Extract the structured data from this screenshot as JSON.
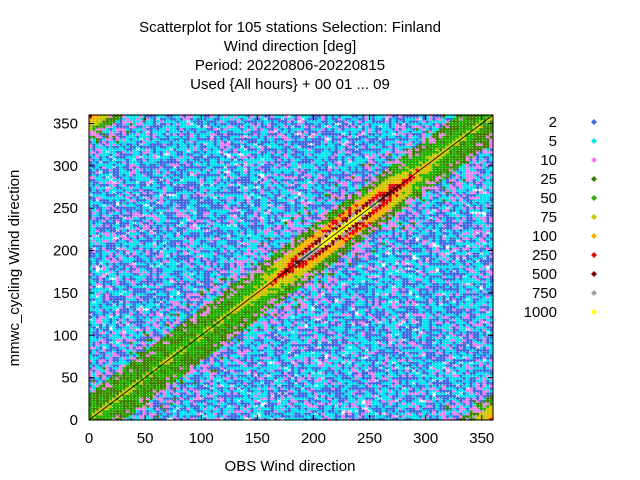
{
  "chart_data": {
    "type": "scatter",
    "title_lines": [
      "Scatterplot for  105 stations Selection: Finland",
      "Wind direction [deg]",
      "Period: 20220806-20220815",
      "Used {All hours} + 00 01 ... 09"
    ],
    "xlabel": "OBS Wind direction",
    "ylabel": "mmwc_cycling Wind direction",
    "xlim": [
      0,
      360
    ],
    "ylim": [
      0,
      360
    ],
    "xticks": [
      0,
      50,
      100,
      150,
      200,
      250,
      300,
      350
    ],
    "yticks": [
      0,
      50,
      100,
      150,
      200,
      250,
      300,
      350
    ],
    "grid": true,
    "diagonal_line": true,
    "legend_placement": "right",
    "legend": [
      {
        "label": "2",
        "color": "#4169e1"
      },
      {
        "label": "5",
        "color": "#00e5ee"
      },
      {
        "label": "10",
        "color": "#ee82ee"
      },
      {
        "label": "25",
        "color": "#3f7f00"
      },
      {
        "label": "50",
        "color": "#22b000"
      },
      {
        "label": "75",
        "color": "#c8c800"
      },
      {
        "label": "100",
        "color": "#ffb000"
      },
      {
        "label": "250",
        "color": "#ee0000"
      },
      {
        "label": "500",
        "color": "#7f0000"
      },
      {
        "label": "750",
        "color": "#a0a0a0"
      },
      {
        "label": "1000",
        "color": "#ffff00"
      }
    ],
    "density_bands": [
      {
        "min_count": 2,
        "color": "#4169e1"
      },
      {
        "min_count": 5,
        "color": "#00e5ee"
      },
      {
        "min_count": 10,
        "color": "#ee82ee"
      },
      {
        "min_count": 25,
        "color": "#3f7f00"
      },
      {
        "min_count": 50,
        "color": "#22b000"
      },
      {
        "min_count": 75,
        "color": "#c8c800"
      },
      {
        "min_count": 100,
        "color": "#ffb000"
      },
      {
        "min_count": 250,
        "color": "#ee0000"
      },
      {
        "min_count": 500,
        "color": "#7f0000"
      },
      {
        "min_count": 750,
        "color": "#a0a0a0"
      },
      {
        "min_count": 1000,
        "color": "#ffff00"
      }
    ]
  }
}
